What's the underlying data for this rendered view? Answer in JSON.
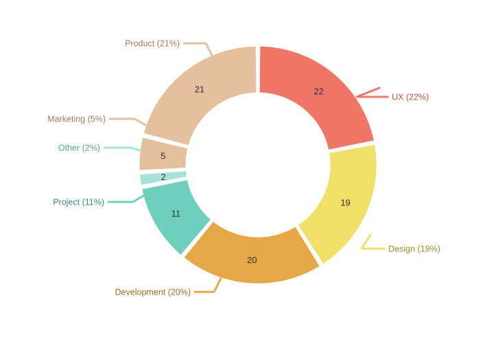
{
  "chart_data": {
    "type": "pie",
    "style": "donut",
    "title": "",
    "legend": "none",
    "categories": [
      "UX",
      "Design",
      "Development",
      "Project",
      "Other",
      "Marketing",
      "Product"
    ],
    "values": [
      22,
      19,
      20,
      11,
      2,
      5,
      21
    ],
    "value_labels": [
      "22",
      "19",
      "20",
      "11",
      "2",
      "5",
      "21"
    ],
    "callout_labels": [
      "UX (22%)",
      "Design (19%)",
      "Development (20%)",
      "Project (11%)",
      "Other (2%)",
      "Marketing (5%)",
      "Product (21%)"
    ],
    "colors": [
      "#ef7566",
      "#f0df68",
      "#e6a746",
      "#6fcfbd",
      "#a6e3d6",
      "#e4bf9e",
      "#e6bf9f"
    ],
    "label_colors": [
      "#c2584b",
      "#a08b2e",
      "#a06e22",
      "#3f8a7c",
      "#5aa294",
      "#a07e62",
      "#a07e62"
    ]
  }
}
